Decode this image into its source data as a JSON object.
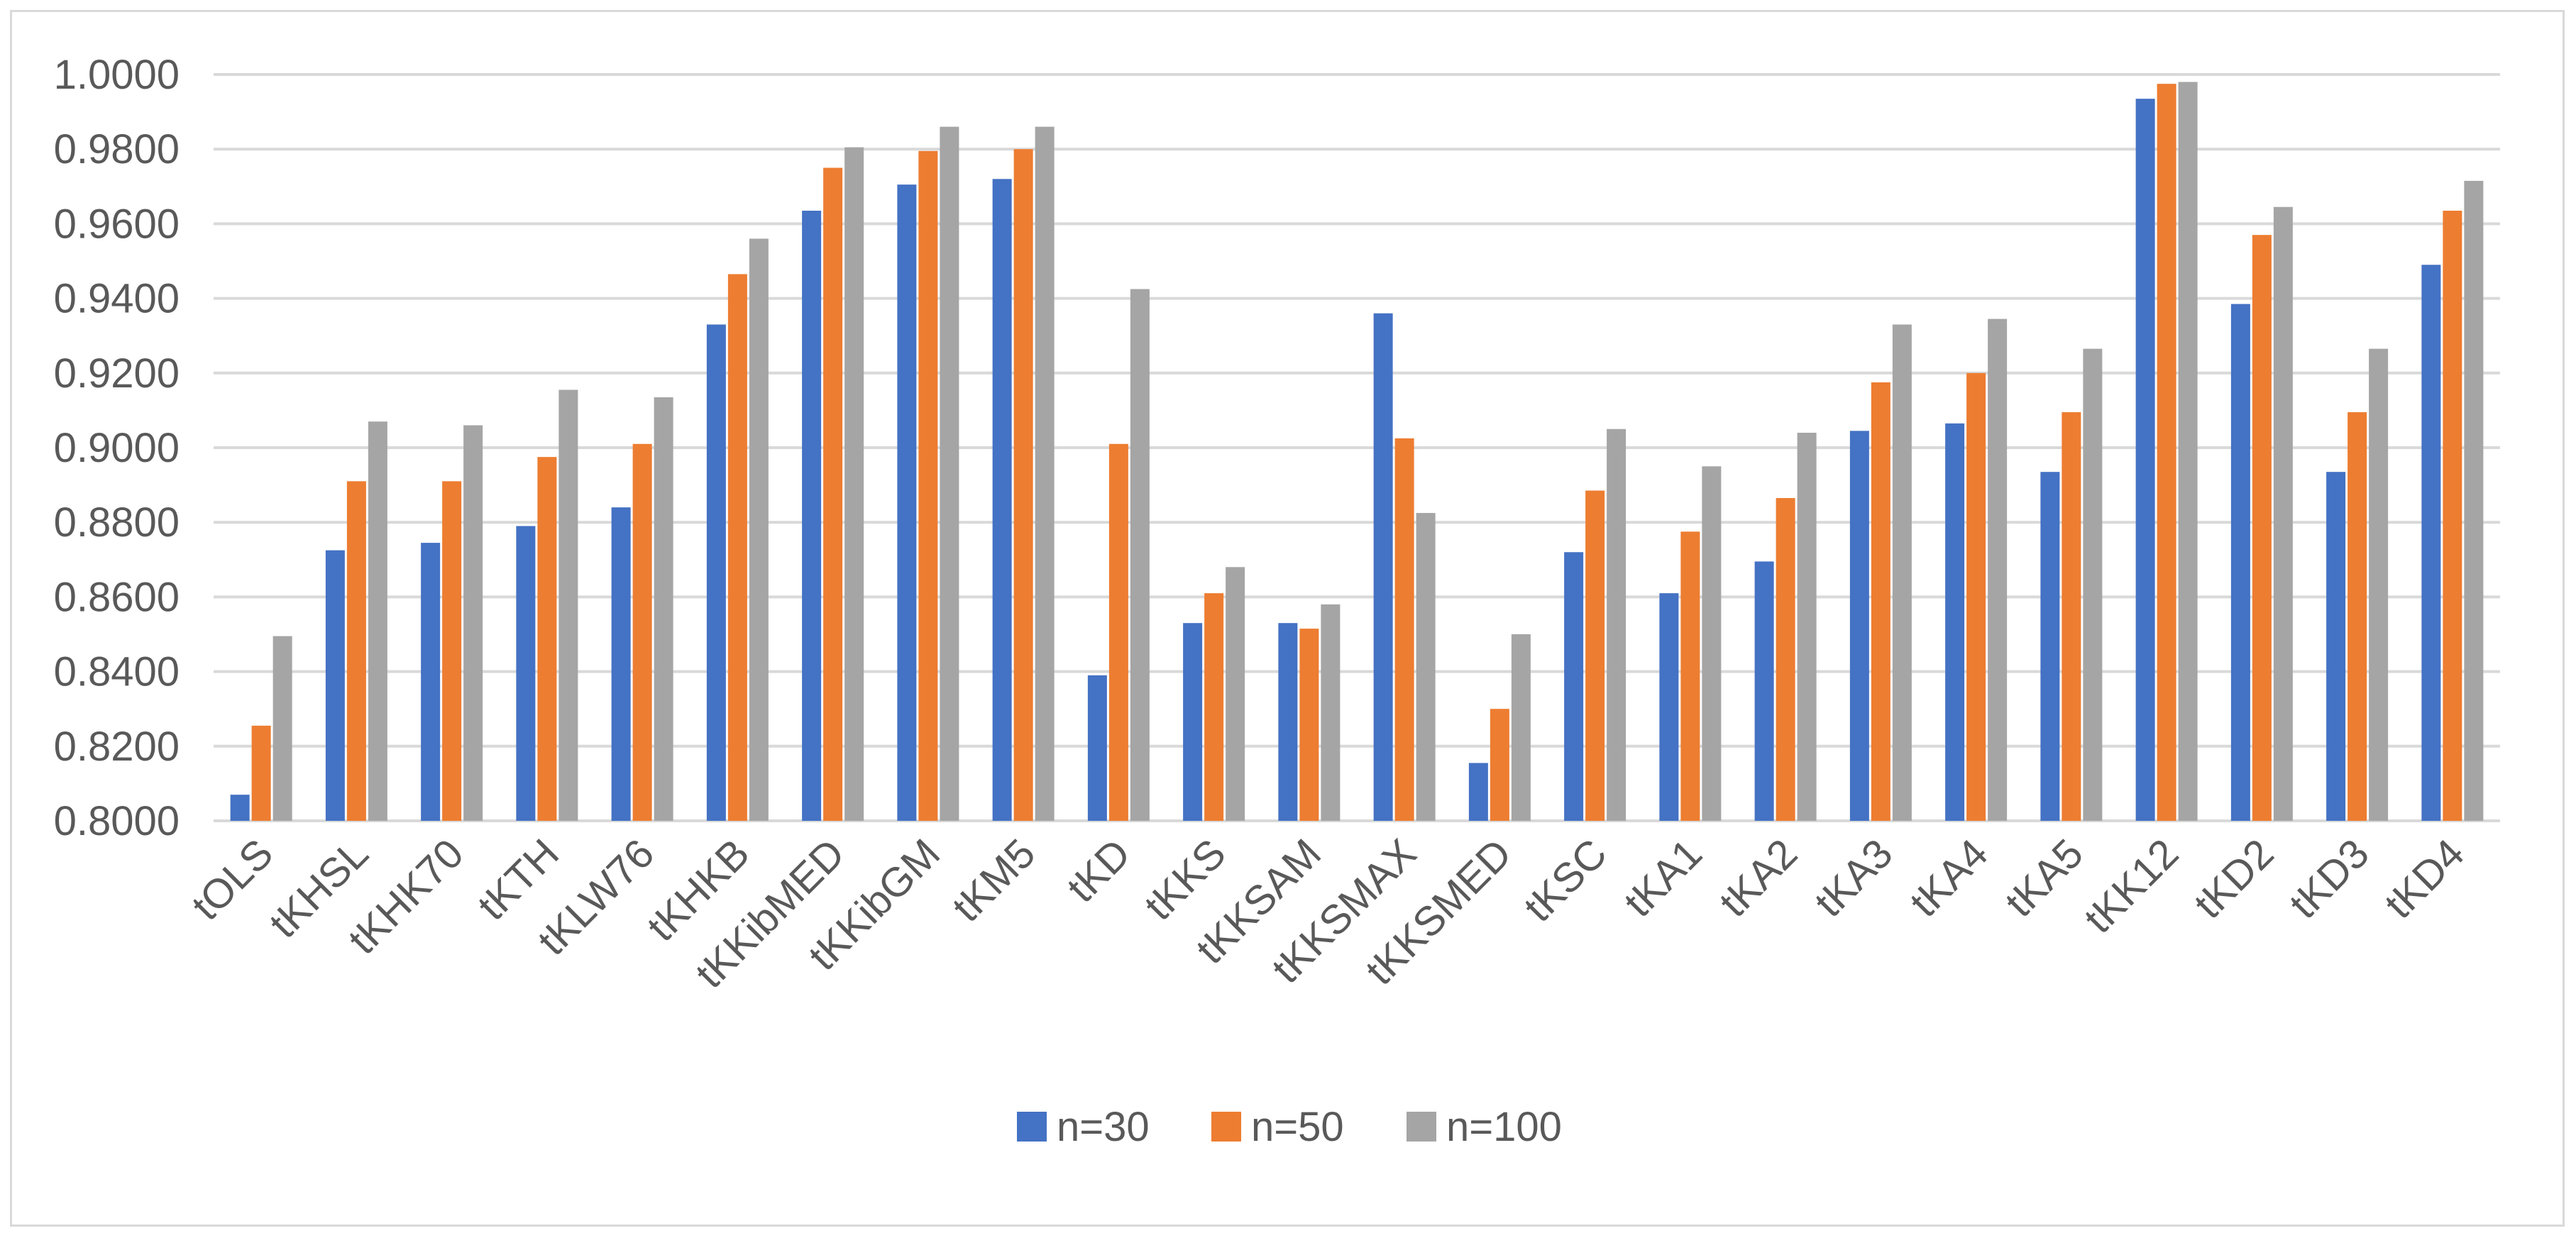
{
  "chart_data": {
    "type": "bar",
    "title": "",
    "xlabel": "",
    "ylabel": "",
    "ylim": [
      0.8,
      1.0
    ],
    "y_ticks": [
      0.8,
      0.82,
      0.84,
      0.86,
      0.88,
      0.9,
      0.92,
      0.94,
      0.96,
      0.98,
      1.0
    ],
    "y_tick_labels": [
      "0.8000",
      "0.8200",
      "0.8400",
      "0.8600",
      "0.8800",
      "0.9000",
      "0.9200",
      "0.9400",
      "0.9600",
      "0.9800",
      "1.0000"
    ],
    "grid": true,
    "legend_position": "bottom",
    "categories": [
      "tOLS",
      "tKHSL",
      "tKHK70",
      "tKTH",
      "tKLW76",
      "tKHKB",
      "tKKibMED",
      "tKKibGM",
      "tKM5",
      "tKD",
      "tKKS",
      "tKKSAM",
      "tKKSMAX",
      "tKKSMED",
      "tKSC",
      "tKA1",
      "tKA2",
      "tKA3",
      "tKA4",
      "tKA5",
      "tKK12",
      "tKD2",
      "tKD3",
      "tKD4"
    ],
    "series": [
      {
        "name": "n=30",
        "color": "#4472c4",
        "values": [
          0.807,
          0.8725,
          0.8745,
          0.879,
          0.884,
          0.933,
          0.9635,
          0.9705,
          0.972,
          0.839,
          0.853,
          0.853,
          0.936,
          0.8155,
          0.872,
          0.861,
          0.8695,
          0.9045,
          0.9065,
          0.8935,
          0.9935,
          0.9385,
          0.8935,
          0.949
        ]
      },
      {
        "name": "n=50",
        "color": "#ed7d31",
        "values": [
          0.8255,
          0.891,
          0.891,
          0.8975,
          0.901,
          0.9465,
          0.975,
          0.9795,
          0.98,
          0.901,
          0.861,
          0.8515,
          0.9025,
          0.83,
          0.8885,
          0.8775,
          0.8865,
          0.9175,
          0.92,
          0.9095,
          0.9975,
          0.957,
          0.9095,
          0.9635
        ]
      },
      {
        "name": "n=100",
        "color": "#a5a5a5",
        "values": [
          0.8495,
          0.907,
          0.906,
          0.9155,
          0.9135,
          0.956,
          0.9805,
          0.986,
          0.986,
          0.9425,
          0.868,
          0.858,
          0.8825,
          0.85,
          0.905,
          0.895,
          0.904,
          0.933,
          0.9345,
          0.9265,
          0.998,
          0.9645,
          0.9265,
          0.9715
        ]
      }
    ]
  }
}
